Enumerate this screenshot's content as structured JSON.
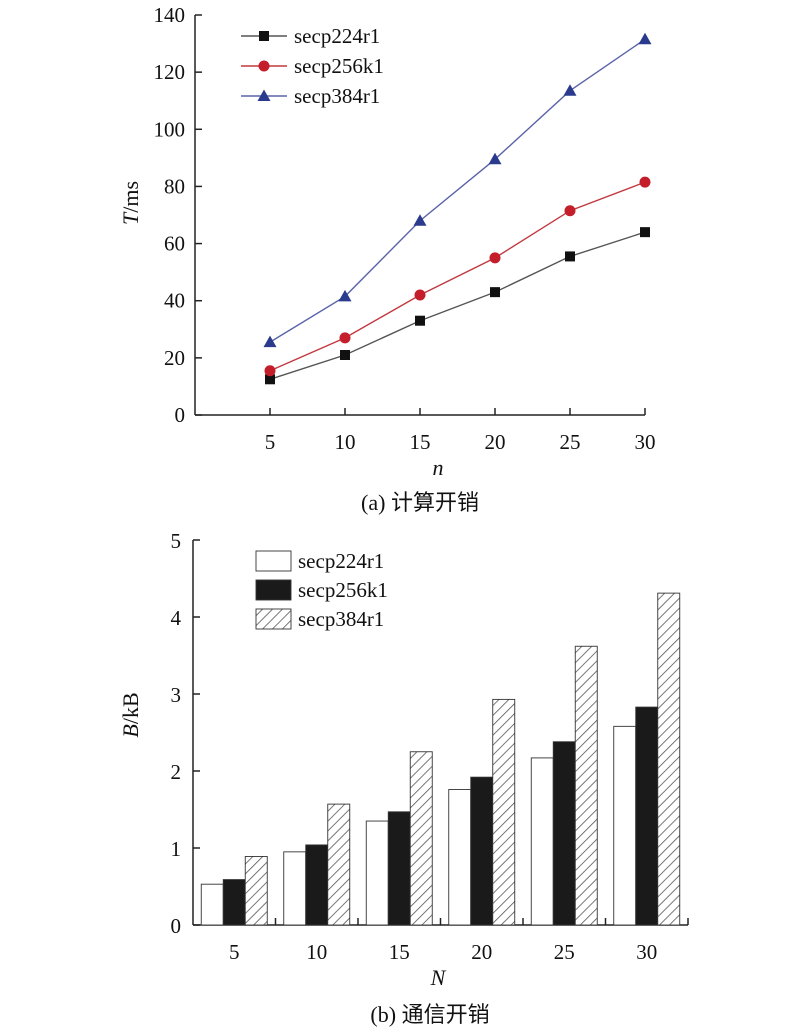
{
  "chart_data": [
    {
      "type": "line",
      "caption": "(a) 计算开销",
      "xlabel_var": "n",
      "ylabel_var": "T",
      "ylabel_unit": "/ms",
      "x": [
        5,
        10,
        15,
        20,
        25,
        30
      ],
      "xlim": [
        0,
        30
      ],
      "ylim": [
        0,
        140
      ],
      "yticks": [
        0,
        20,
        40,
        60,
        80,
        100,
        120,
        140
      ],
      "legend_position": "top-left",
      "grid": false,
      "series": [
        {
          "name": "secp224r1",
          "values": [
            12.5,
            21,
            33,
            43,
            55.5,
            64
          ],
          "color": "#555555",
          "marker_color": "#111111",
          "marker": "square"
        },
        {
          "name": "secp256k1",
          "values": [
            15.5,
            27,
            42,
            55,
            71.5,
            81.5
          ],
          "color": "#c0393f",
          "marker_color": "#c41e2a",
          "marker": "circle"
        },
        {
          "name": "secp384r1",
          "values": [
            25.5,
            41.5,
            68,
            89.5,
            113.5,
            131.5
          ],
          "color": "#5a63a8",
          "marker_color": "#2a3a8c",
          "marker": "triangle"
        }
      ]
    },
    {
      "type": "bar",
      "caption": "(b) 通信开销",
      "xlabel_var": "N",
      "ylabel_var": "B",
      "ylabel_unit": "/kB",
      "categories": [
        "5",
        "10",
        "15",
        "20",
        "25",
        "30"
      ],
      "ylim": [
        0,
        5
      ],
      "yticks": [
        0,
        1,
        2,
        3,
        4,
        5
      ],
      "legend_position": "top-left",
      "grid": false,
      "series": [
        {
          "name": "secp224r1",
          "values": [
            0.53,
            0.95,
            1.35,
            1.76,
            2.17,
            2.58
          ],
          "fill": "white"
        },
        {
          "name": "secp256k1",
          "values": [
            0.59,
            1.04,
            1.47,
            1.92,
            2.38,
            2.83
          ],
          "fill": "black"
        },
        {
          "name": "secp384r1",
          "values": [
            0.89,
            1.57,
            2.25,
            2.93,
            3.62,
            4.31
          ],
          "fill": "hatch"
        }
      ]
    }
  ]
}
